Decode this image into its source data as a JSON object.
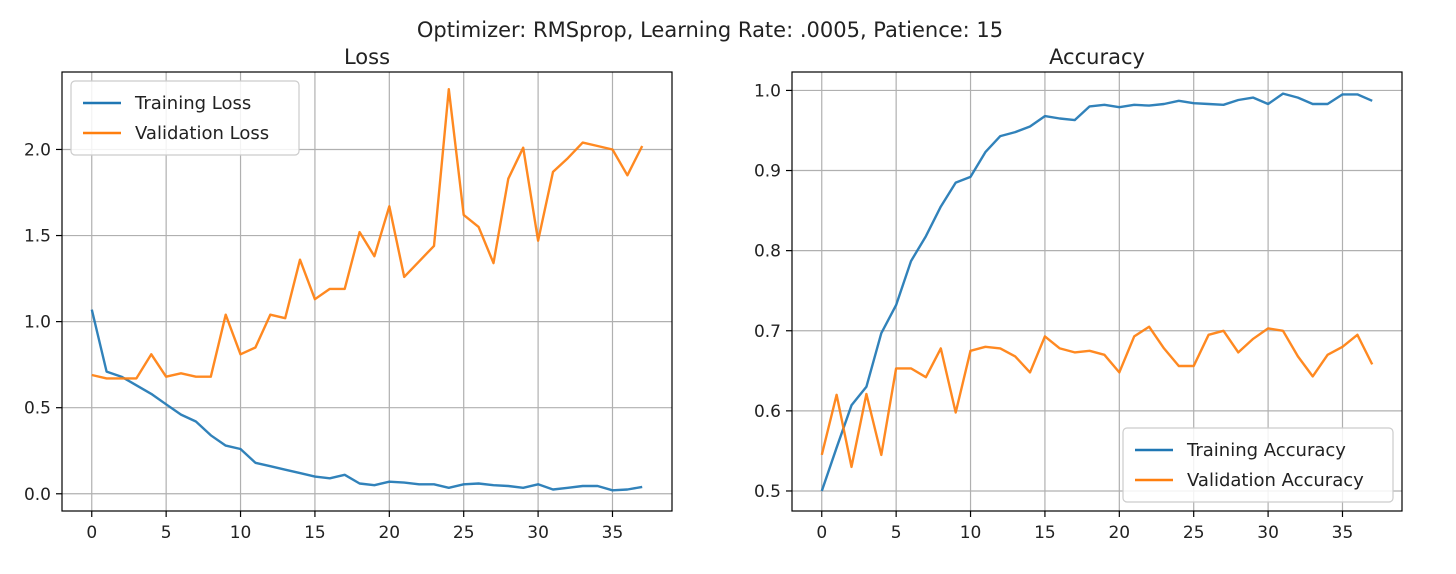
{
  "suptitle": "Optimizer: RMSprop, Learning Rate: .0005, Patience: 15",
  "colors": {
    "training": "#1f77b4",
    "validation": "#ff7f0e",
    "grid": "#b0b0b0",
    "axis": "#000000"
  },
  "chart_data": [
    {
      "type": "line",
      "title": "Loss",
      "xlabel": "",
      "ylabel": "",
      "x": [
        0,
        1,
        2,
        3,
        4,
        5,
        6,
        7,
        8,
        9,
        10,
        11,
        12,
        13,
        14,
        15,
        16,
        17,
        18,
        19,
        20,
        21,
        22,
        23,
        24,
        25,
        26,
        27,
        28,
        29,
        30,
        31,
        32,
        33,
        34,
        35,
        36,
        37
      ],
      "xlim": [
        -2,
        39
      ],
      "ylim": [
        -0.1,
        2.45
      ],
      "xticks": [
        0,
        5,
        10,
        15,
        20,
        25,
        30,
        35
      ],
      "xtick_labels": [
        "0",
        "5",
        "10",
        "15",
        "20",
        "25",
        "30",
        "35"
      ],
      "yticks": [
        0.0,
        0.5,
        1.0,
        1.5,
        2.0
      ],
      "ytick_labels": [
        "0.0",
        "0.5",
        "1.0",
        "1.5",
        "2.0"
      ],
      "grid": true,
      "legend_position": "upper-left",
      "series": [
        {
          "name": "Training Loss",
          "color": "#1f77b4",
          "values": [
            1.07,
            0.71,
            0.68,
            0.63,
            0.58,
            0.52,
            0.46,
            0.42,
            0.34,
            0.28,
            0.26,
            0.18,
            0.16,
            0.14,
            0.12,
            0.1,
            0.09,
            0.11,
            0.06,
            0.05,
            0.07,
            0.065,
            0.055,
            0.055,
            0.035,
            0.055,
            0.06,
            0.05,
            0.045,
            0.035,
            0.055,
            0.025,
            0.035,
            0.045,
            0.045,
            0.02,
            0.025,
            0.04
          ]
        },
        {
          "name": "Validation Loss",
          "color": "#ff7f0e",
          "values": [
            0.69,
            0.67,
            0.67,
            0.67,
            0.81,
            0.68,
            0.7,
            0.68,
            0.68,
            1.04,
            0.81,
            0.85,
            1.04,
            1.02,
            1.36,
            1.13,
            1.19,
            1.19,
            1.52,
            1.38,
            1.67,
            1.26,
            1.35,
            1.44,
            2.35,
            1.62,
            1.55,
            1.34,
            1.83,
            2.01,
            1.47,
            1.87,
            1.95,
            2.04,
            2.02,
            2.0,
            1.85,
            2.02
          ]
        }
      ]
    },
    {
      "type": "line",
      "title": "Accuracy",
      "xlabel": "",
      "ylabel": "",
      "x": [
        0,
        1,
        2,
        3,
        4,
        5,
        6,
        7,
        8,
        9,
        10,
        11,
        12,
        13,
        14,
        15,
        16,
        17,
        18,
        19,
        20,
        21,
        22,
        23,
        24,
        25,
        26,
        27,
        28,
        29,
        30,
        31,
        32,
        33,
        34,
        35,
        36,
        37
      ],
      "xlim": [
        -2,
        39
      ],
      "ylim": [
        0.475,
        1.023
      ],
      "xticks": [
        0,
        5,
        10,
        15,
        20,
        25,
        30,
        35
      ],
      "xtick_labels": [
        "0",
        "5",
        "10",
        "15",
        "20",
        "25",
        "30",
        "35"
      ],
      "yticks": [
        0.5,
        0.6,
        0.7,
        0.8,
        0.9,
        1.0
      ],
      "ytick_labels": [
        "0.5",
        "0.6",
        "0.7",
        "0.8",
        "0.9",
        "1.0"
      ],
      "grid": true,
      "legend_position": "lower-right",
      "series": [
        {
          "name": "Training Accuracy",
          "color": "#1f77b4",
          "values": [
            0.5,
            0.554,
            0.607,
            0.63,
            0.697,
            0.732,
            0.787,
            0.818,
            0.855,
            0.885,
            0.892,
            0.923,
            0.943,
            0.948,
            0.955,
            0.968,
            0.965,
            0.963,
            0.98,
            0.982,
            0.979,
            0.982,
            0.981,
            0.983,
            0.987,
            0.984,
            0.983,
            0.982,
            0.988,
            0.991,
            0.983,
            0.996,
            0.991,
            0.983,
            0.983,
            0.995,
            0.995,
            0.987
          ]
        },
        {
          "name": "Validation Accuracy",
          "color": "#ff7f0e",
          "values": [
            0.545,
            0.62,
            0.53,
            0.621,
            0.545,
            0.653,
            0.653,
            0.642,
            0.678,
            0.598,
            0.675,
            0.68,
            0.678,
            0.668,
            0.648,
            0.693,
            0.678,
            0.673,
            0.675,
            0.67,
            0.648,
            0.693,
            0.705,
            0.678,
            0.656,
            0.656,
            0.695,
            0.7,
            0.673,
            0.69,
            0.703,
            0.7,
            0.668,
            0.643,
            0.67,
            0.68,
            0.695,
            0.658
          ]
        }
      ]
    }
  ]
}
